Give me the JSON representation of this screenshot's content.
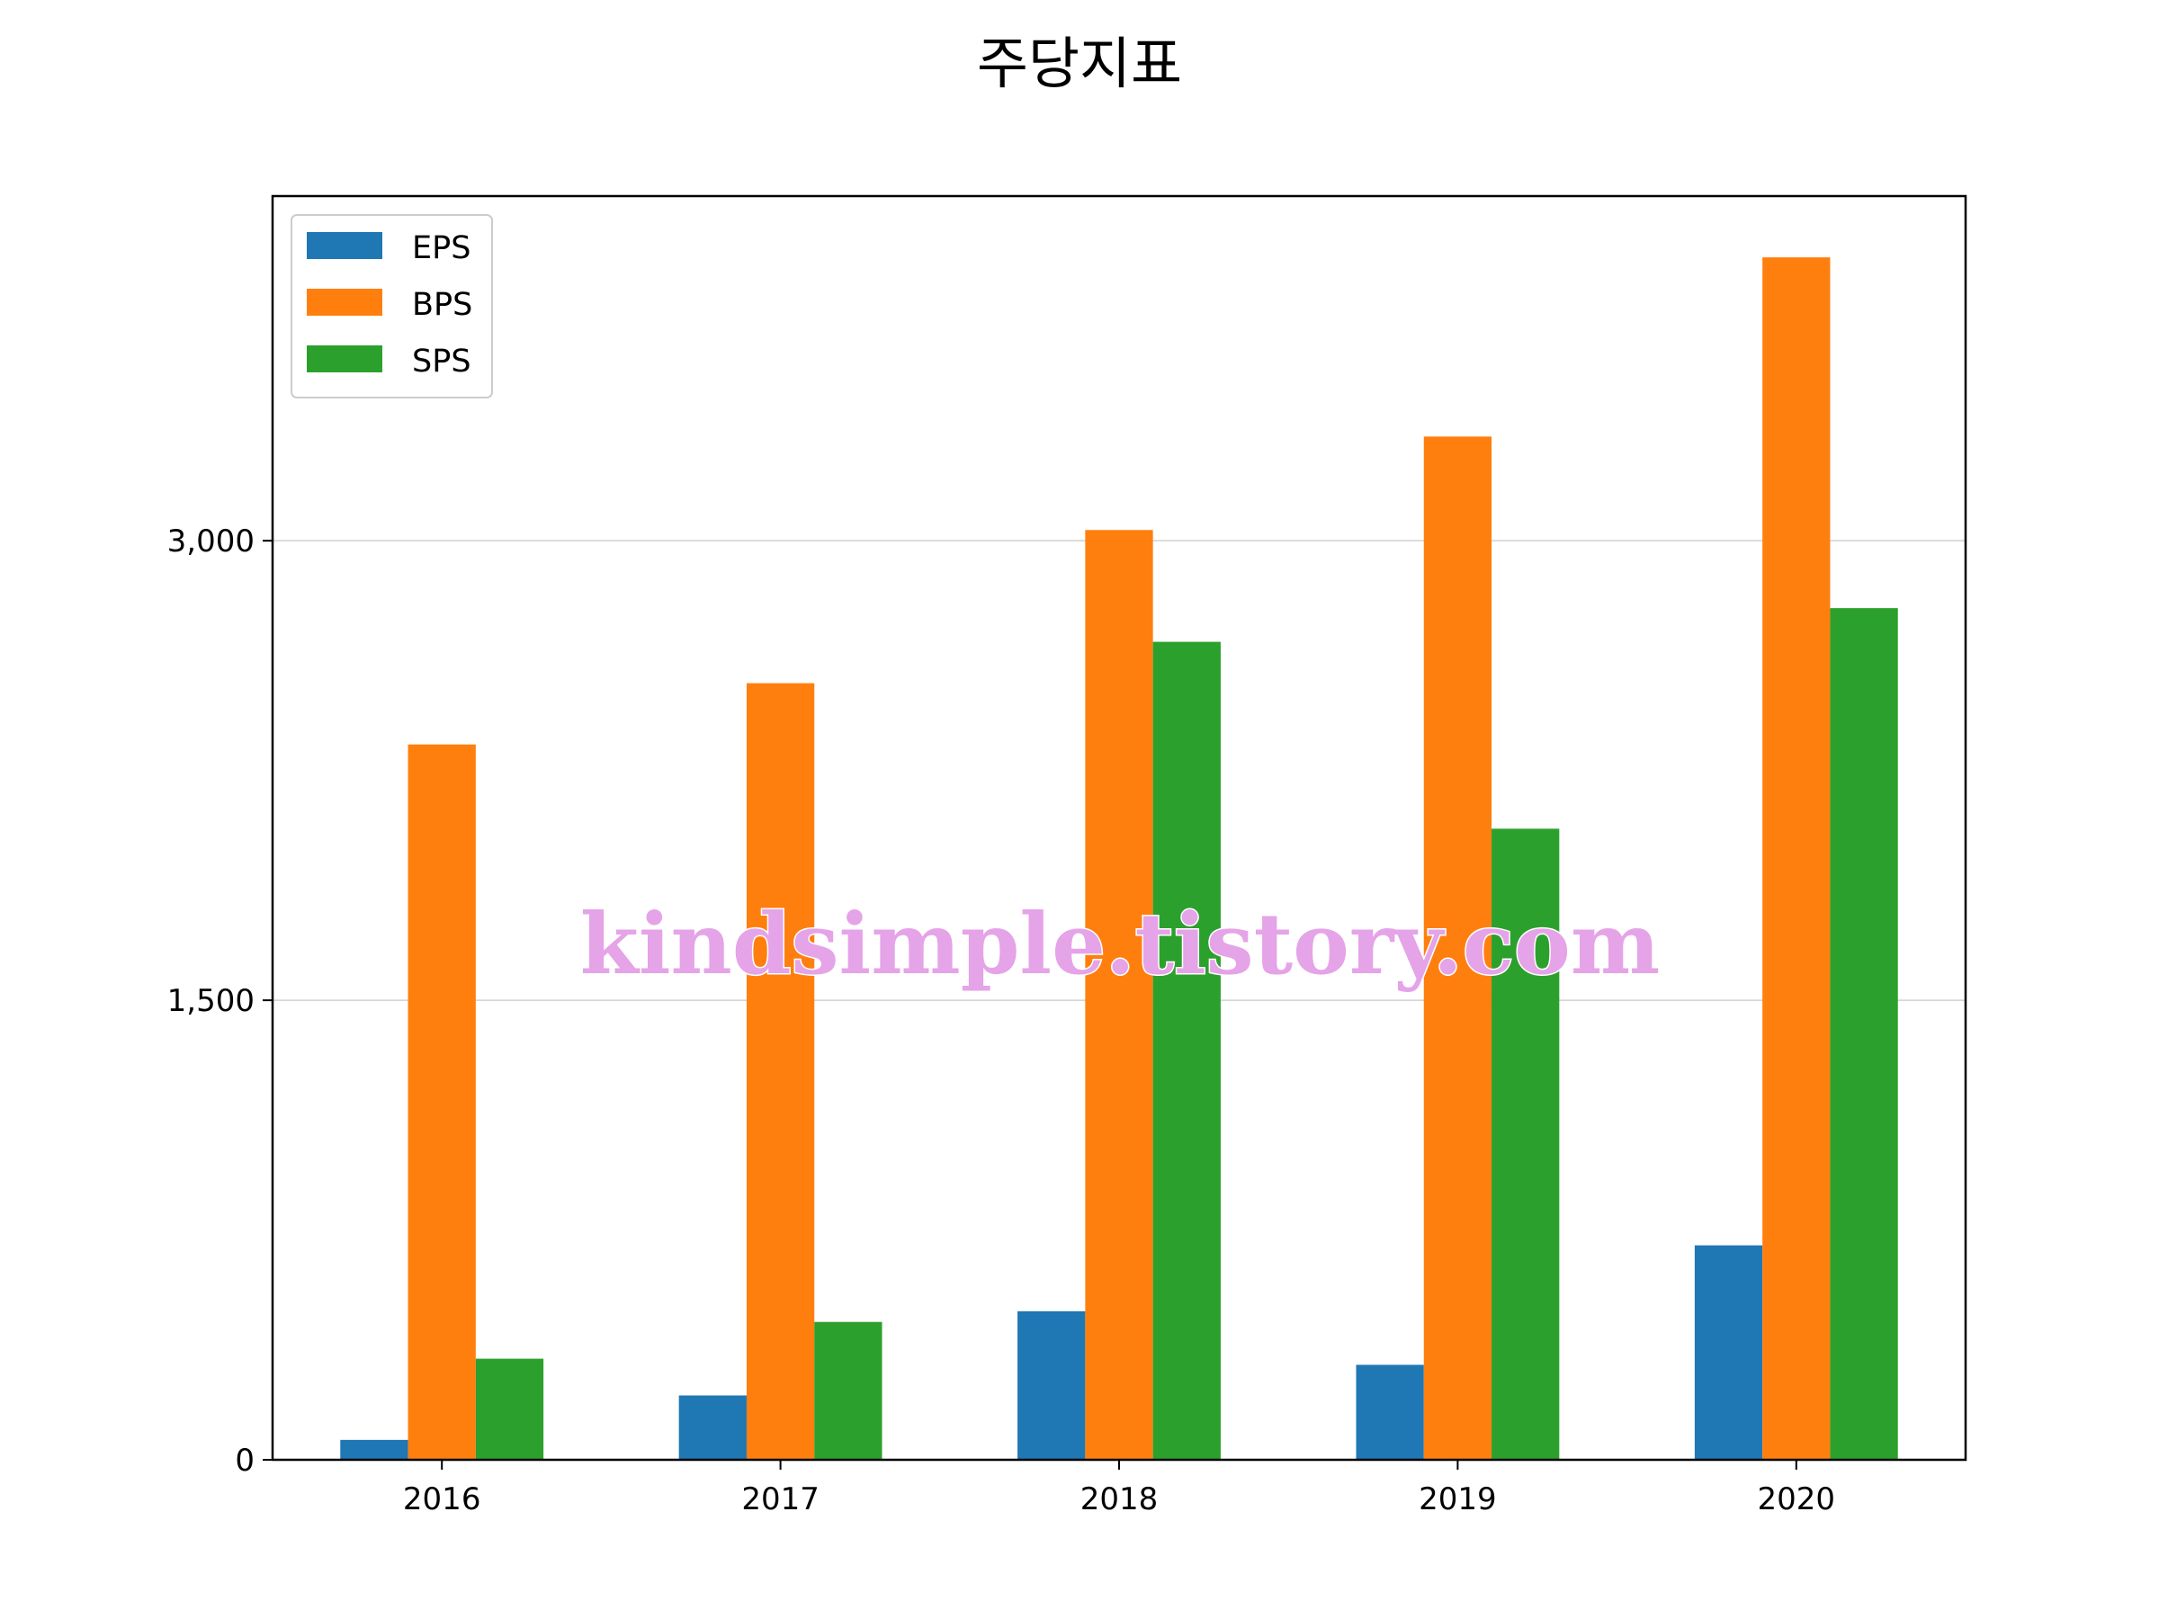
{
  "chart_data": {
    "type": "bar",
    "title": "주당지표",
    "xlabel": "",
    "ylabel": "",
    "categories": [
      "2016",
      "2017",
      "2018",
      "2019",
      "2020"
    ],
    "series": [
      {
        "name": "EPS",
        "color": "#1f77b4",
        "values": [
          65,
          210,
          485,
          310,
          700
        ]
      },
      {
        "name": "BPS",
        "color": "#ff7f0e",
        "values": [
          2335,
          2535,
          3035,
          3340,
          3925
        ]
      },
      {
        "name": "SPS",
        "color": "#2ca02c",
        "values": [
          330,
          450,
          2670,
          2060,
          2780
        ]
      }
    ],
    "ylim": [
      0,
      4125
    ],
    "yticks": [
      0,
      1500,
      3000
    ],
    "ytick_labels": [
      "0",
      "1,500",
      "3,000"
    ],
    "grid": "y",
    "legend_position": "upper-left"
  },
  "watermark": "kindsimple.tistory.com"
}
